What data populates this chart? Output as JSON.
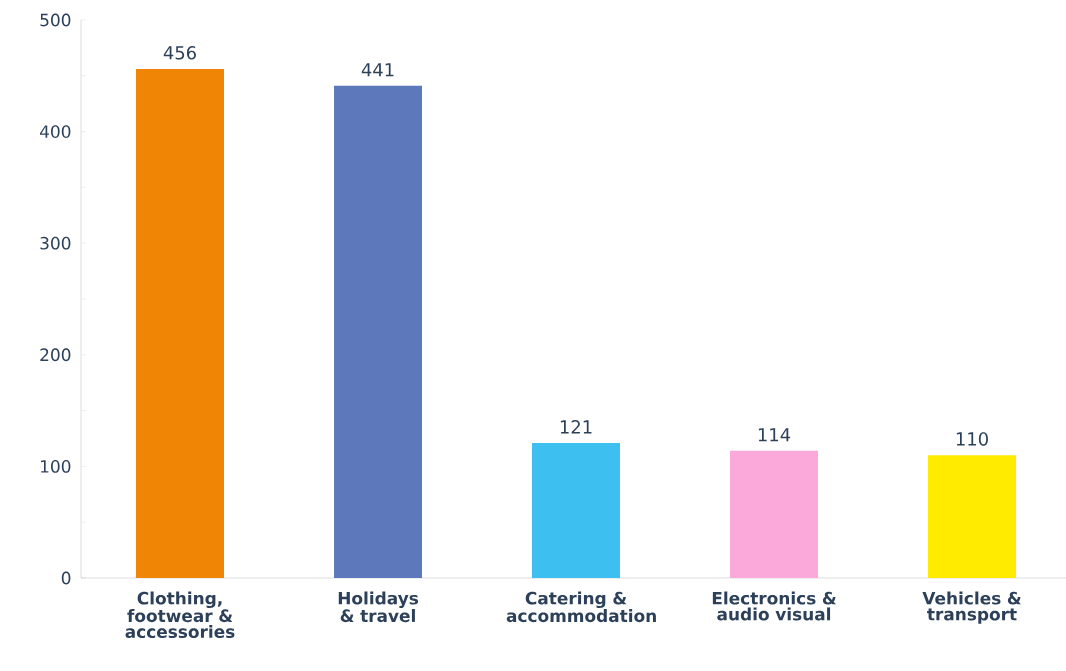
{
  "chart_data": {
    "type": "bar",
    "categories": [
      "Clothing, footwear & accessories",
      "Holidays & travel",
      "Catering & accommodation",
      "Electronics & audio visual",
      "Vehicles & transport"
    ],
    "values": [
      456,
      441,
      121,
      114,
      110
    ],
    "colors": [
      "#f08505",
      "#5d79bb",
      "#3dbff0",
      "#fba9da",
      "#ffeb00"
    ],
    "ylim": [
      0,
      500
    ],
    "yticks": [
      0,
      {
        "value": 50,
        "label": null
      },
      100,
      {
        "value": 150,
        "label": null
      },
      200,
      {
        "value": 250,
        "label": null
      },
      300,
      {
        "value": 350,
        "label": null
      },
      400,
      {
        "value": 450,
        "label": null
      },
      500
    ],
    "data_labels": true,
    "grid": false
  }
}
